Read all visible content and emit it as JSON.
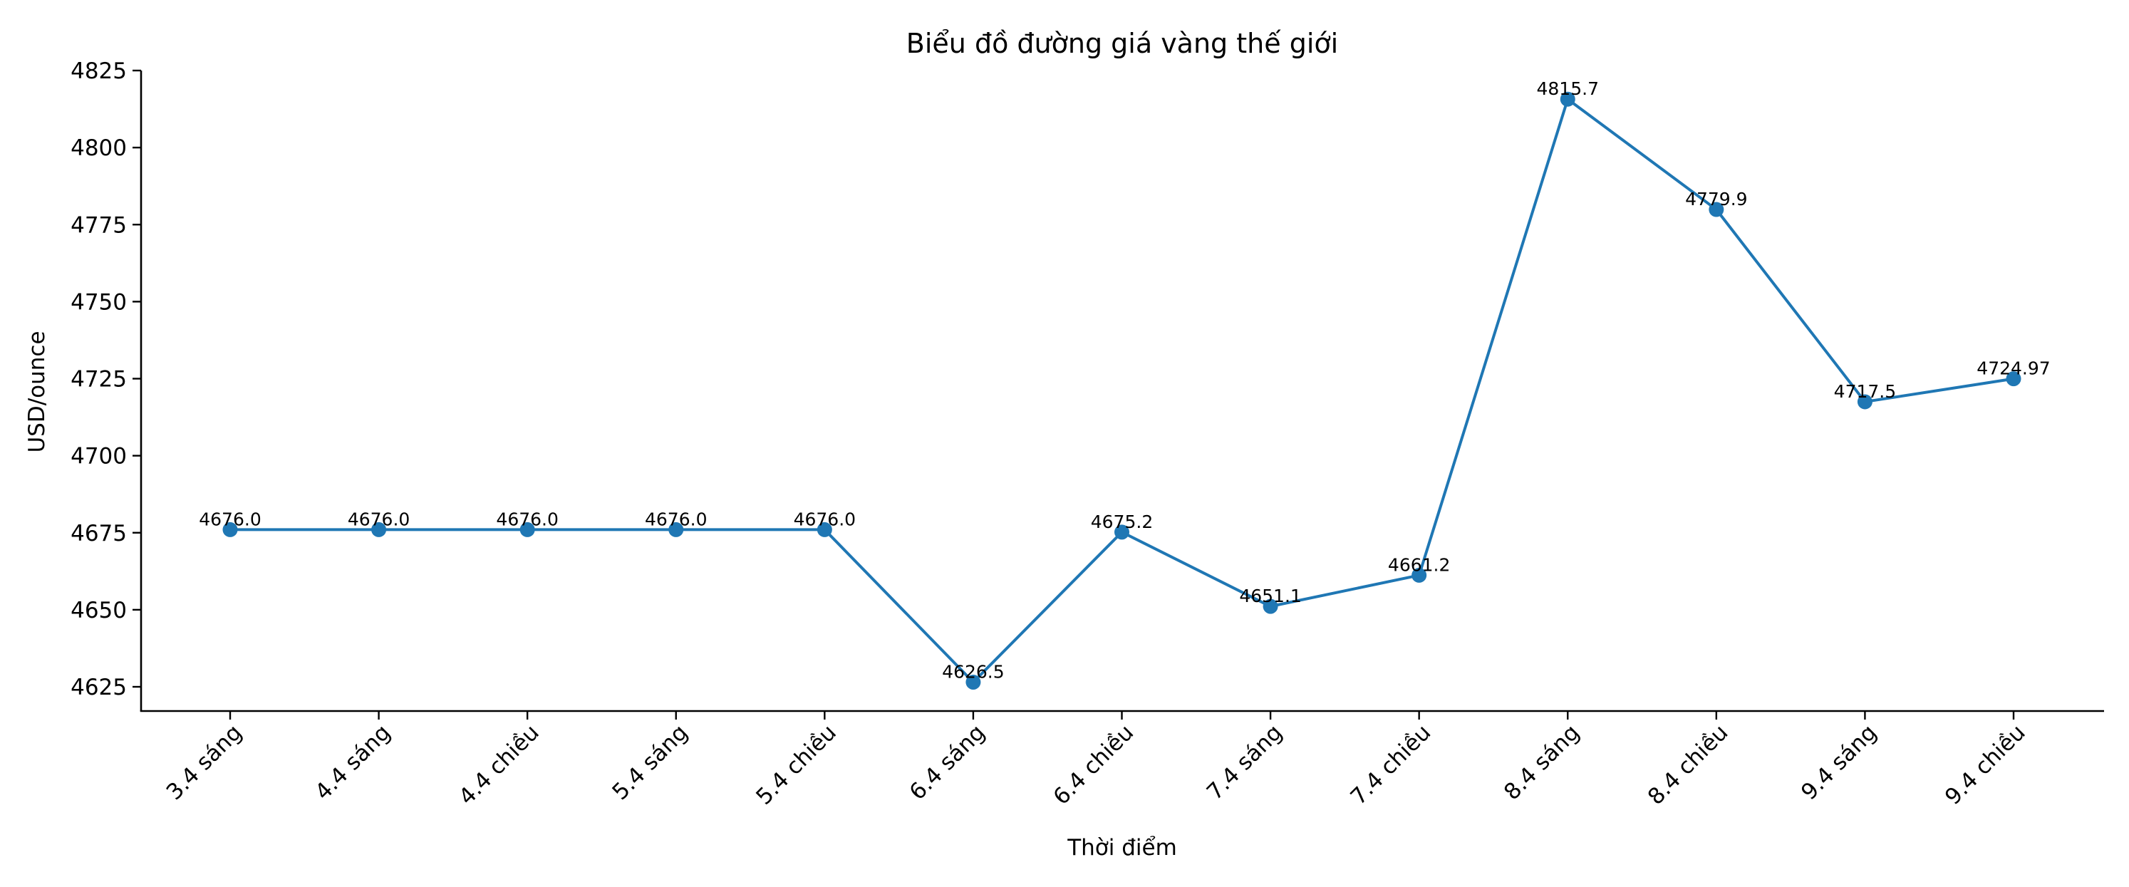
{
  "chart_data": {
    "type": "line",
    "title": "Biểu đồ đường giá vàng thế giới",
    "xlabel": "Thời điểm",
    "ylabel": "USD/ounce",
    "categories": [
      "3.4 sáng",
      "4.4 sáng",
      "4.4 chiều",
      "5.4 sáng",
      "5.4 chiều",
      "6.4 sáng",
      "6.4 chiều",
      "7.4 sáng",
      "7.4 chiều",
      "8.4 sáng",
      "8.4 chiều",
      "9.4 sáng",
      "9.4 chiều"
    ],
    "series": [
      {
        "name": "Giá vàng thế giới",
        "values": [
          4676.0,
          4676.0,
          4676.0,
          4676.0,
          4676.0,
          4626.5,
          4675.2,
          4651.1,
          4661.2,
          4815.7,
          4779.9,
          4717.5,
          4724.97
        ],
        "value_labels": [
          "4676.0",
          "4676.0",
          "4676.0",
          "4676.0",
          "4676.0",
          "4626.5",
          "4675.2",
          "4651.1",
          "4661.2",
          "4815.7",
          "4779.9",
          "4717.5",
          "4724.97"
        ],
        "color": "#1f77b4",
        "marker": "circle"
      }
    ],
    "yticks": [
      4625,
      4650,
      4675,
      4700,
      4725,
      4750,
      4775,
      4800,
      4825
    ],
    "ylim": [
      4617.5,
      4826
    ],
    "grid": false,
    "legend": "none",
    "xtick_rotation": 45
  }
}
